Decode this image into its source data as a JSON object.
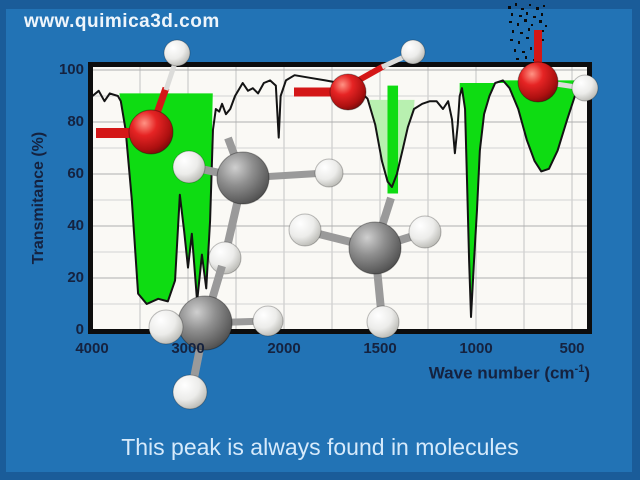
{
  "site": {
    "url": "www.quimica3d.com"
  },
  "caption": {
    "text": "This peak is always found in molecules"
  },
  "colors": {
    "background": "#2273b5",
    "frame": "#1a5c99",
    "plot_background": "#faf9f5",
    "grid": "#c2c2c2",
    "curve": "#141414",
    "band_green": "#0edc12",
    "band_pale_green": "#b8f0b0",
    "oxygen_red": "#d41717",
    "carbon_gray": "#6f6f6f",
    "hydrogen_white": "#f0f0ee"
  },
  "chart_data": {
    "type": "line",
    "title": "",
    "ylabel": "Transmitance (%)",
    "xlabel_pre": "Wave number (cm",
    "xlabel_sup": "-1",
    "xlabel_post": ")",
    "x_ticks": [
      4000,
      3000,
      2000,
      1500,
      1000,
      500
    ],
    "y_ticks": [
      100,
      80,
      60,
      40,
      20,
      0
    ],
    "ylim": [
      0,
      100
    ],
    "x_axis_reversed": true,
    "x_scale_note": "1000 per division above 2000 cm-1, 500 per division below 2000 cm-1",
    "grid": {
      "x_values": [
        3500,
        3000,
        2500,
        2000,
        1750,
        1500,
        1250,
        1000,
        750,
        500
      ],
      "y_values": [
        100,
        90,
        80,
        70,
        60,
        50,
        40,
        30,
        20,
        10
      ]
    },
    "series": [
      {
        "name": "IR transmittance spectrum",
        "points": [
          [
            3995,
            90
          ],
          [
            3930,
            92
          ],
          [
            3870,
            88
          ],
          [
            3815,
            91
          ],
          [
            3730,
            90
          ],
          [
            3700,
            88
          ],
          [
            3650,
            77
          ],
          [
            3585,
            50
          ],
          [
            3520,
            14
          ],
          [
            3430,
            10
          ],
          [
            3310,
            12
          ],
          [
            3210,
            11
          ],
          [
            3135,
            19
          ],
          [
            3085,
            52
          ],
          [
            3040,
            38
          ],
          [
            3000,
            24
          ],
          [
            2960,
            37
          ],
          [
            2905,
            11
          ],
          [
            2855,
            29
          ],
          [
            2810,
            16
          ],
          [
            2770,
            42
          ],
          [
            2740,
            77
          ],
          [
            2710,
            85
          ],
          [
            2675,
            84
          ],
          [
            2645,
            87
          ],
          [
            2605,
            83
          ],
          [
            2560,
            85
          ],
          [
            2510,
            90
          ],
          [
            2430,
            95
          ],
          [
            2375,
            92
          ],
          [
            2325,
            93
          ],
          [
            2270,
            91
          ],
          [
            2210,
            95
          ],
          [
            2145,
            96
          ],
          [
            2085,
            94
          ],
          [
            2055,
            74
          ],
          [
            2035,
            90
          ],
          [
            1990,
            96
          ],
          [
            1945,
            98
          ],
          [
            1865,
            97
          ],
          [
            1785,
            96
          ],
          [
            1710,
            95
          ],
          [
            1645,
            93
          ],
          [
            1595,
            91
          ],
          [
            1565,
            89
          ],
          [
            1525,
            79
          ],
          [
            1490,
            65
          ],
          [
            1460,
            57
          ],
          [
            1438,
            55
          ],
          [
            1412,
            60
          ],
          [
            1380,
            70
          ],
          [
            1355,
            78
          ],
          [
            1323,
            85
          ],
          [
            1280,
            87
          ],
          [
            1240,
            88
          ],
          [
            1205,
            88
          ],
          [
            1172,
            85
          ],
          [
            1145,
            88
          ],
          [
            1125,
            81
          ],
          [
            1110,
            68
          ],
          [
            1095,
            79
          ],
          [
            1085,
            90
          ],
          [
            1073,
            93
          ],
          [
            1057,
            85
          ],
          [
            1047,
            58
          ],
          [
            1036,
            27
          ],
          [
            1026,
            5
          ],
          [
            1010,
            27
          ],
          [
            995,
            46
          ],
          [
            980,
            69
          ],
          [
            958,
            83
          ],
          [
            930,
            90
          ],
          [
            900,
            95
          ],
          [
            860,
            96
          ],
          [
            825,
            93
          ],
          [
            780,
            85
          ],
          [
            735,
            73
          ],
          [
            695,
            65
          ],
          [
            660,
            61
          ],
          [
            620,
            62
          ],
          [
            575,
            69
          ],
          [
            525,
            81
          ],
          [
            485,
            90
          ],
          [
            448,
            93
          ],
          [
            415,
            94
          ]
        ]
      }
    ],
    "bands": [
      {
        "name": "O-H / C-H stretch band",
        "from": 3715,
        "to": 2742,
        "baseline": 91,
        "fill": "green"
      },
      {
        "name": "C-H bend band (highlighted peak)",
        "from": 1565,
        "to": 1320,
        "baseline": 88.5,
        "fill": "pale"
      },
      {
        "name": "C-O stretch band",
        "from": 1085,
        "to": 855,
        "baseline": 95,
        "fill": "green"
      },
      {
        "name": "O-H out-of-plane band",
        "from": 855,
        "to": 412,
        "baseline": 96,
        "fill": "green"
      }
    ],
    "marker": {
      "from": 1461,
      "to": 1406,
      "t_top": 94,
      "t_bottom": 52.5
    }
  }
}
